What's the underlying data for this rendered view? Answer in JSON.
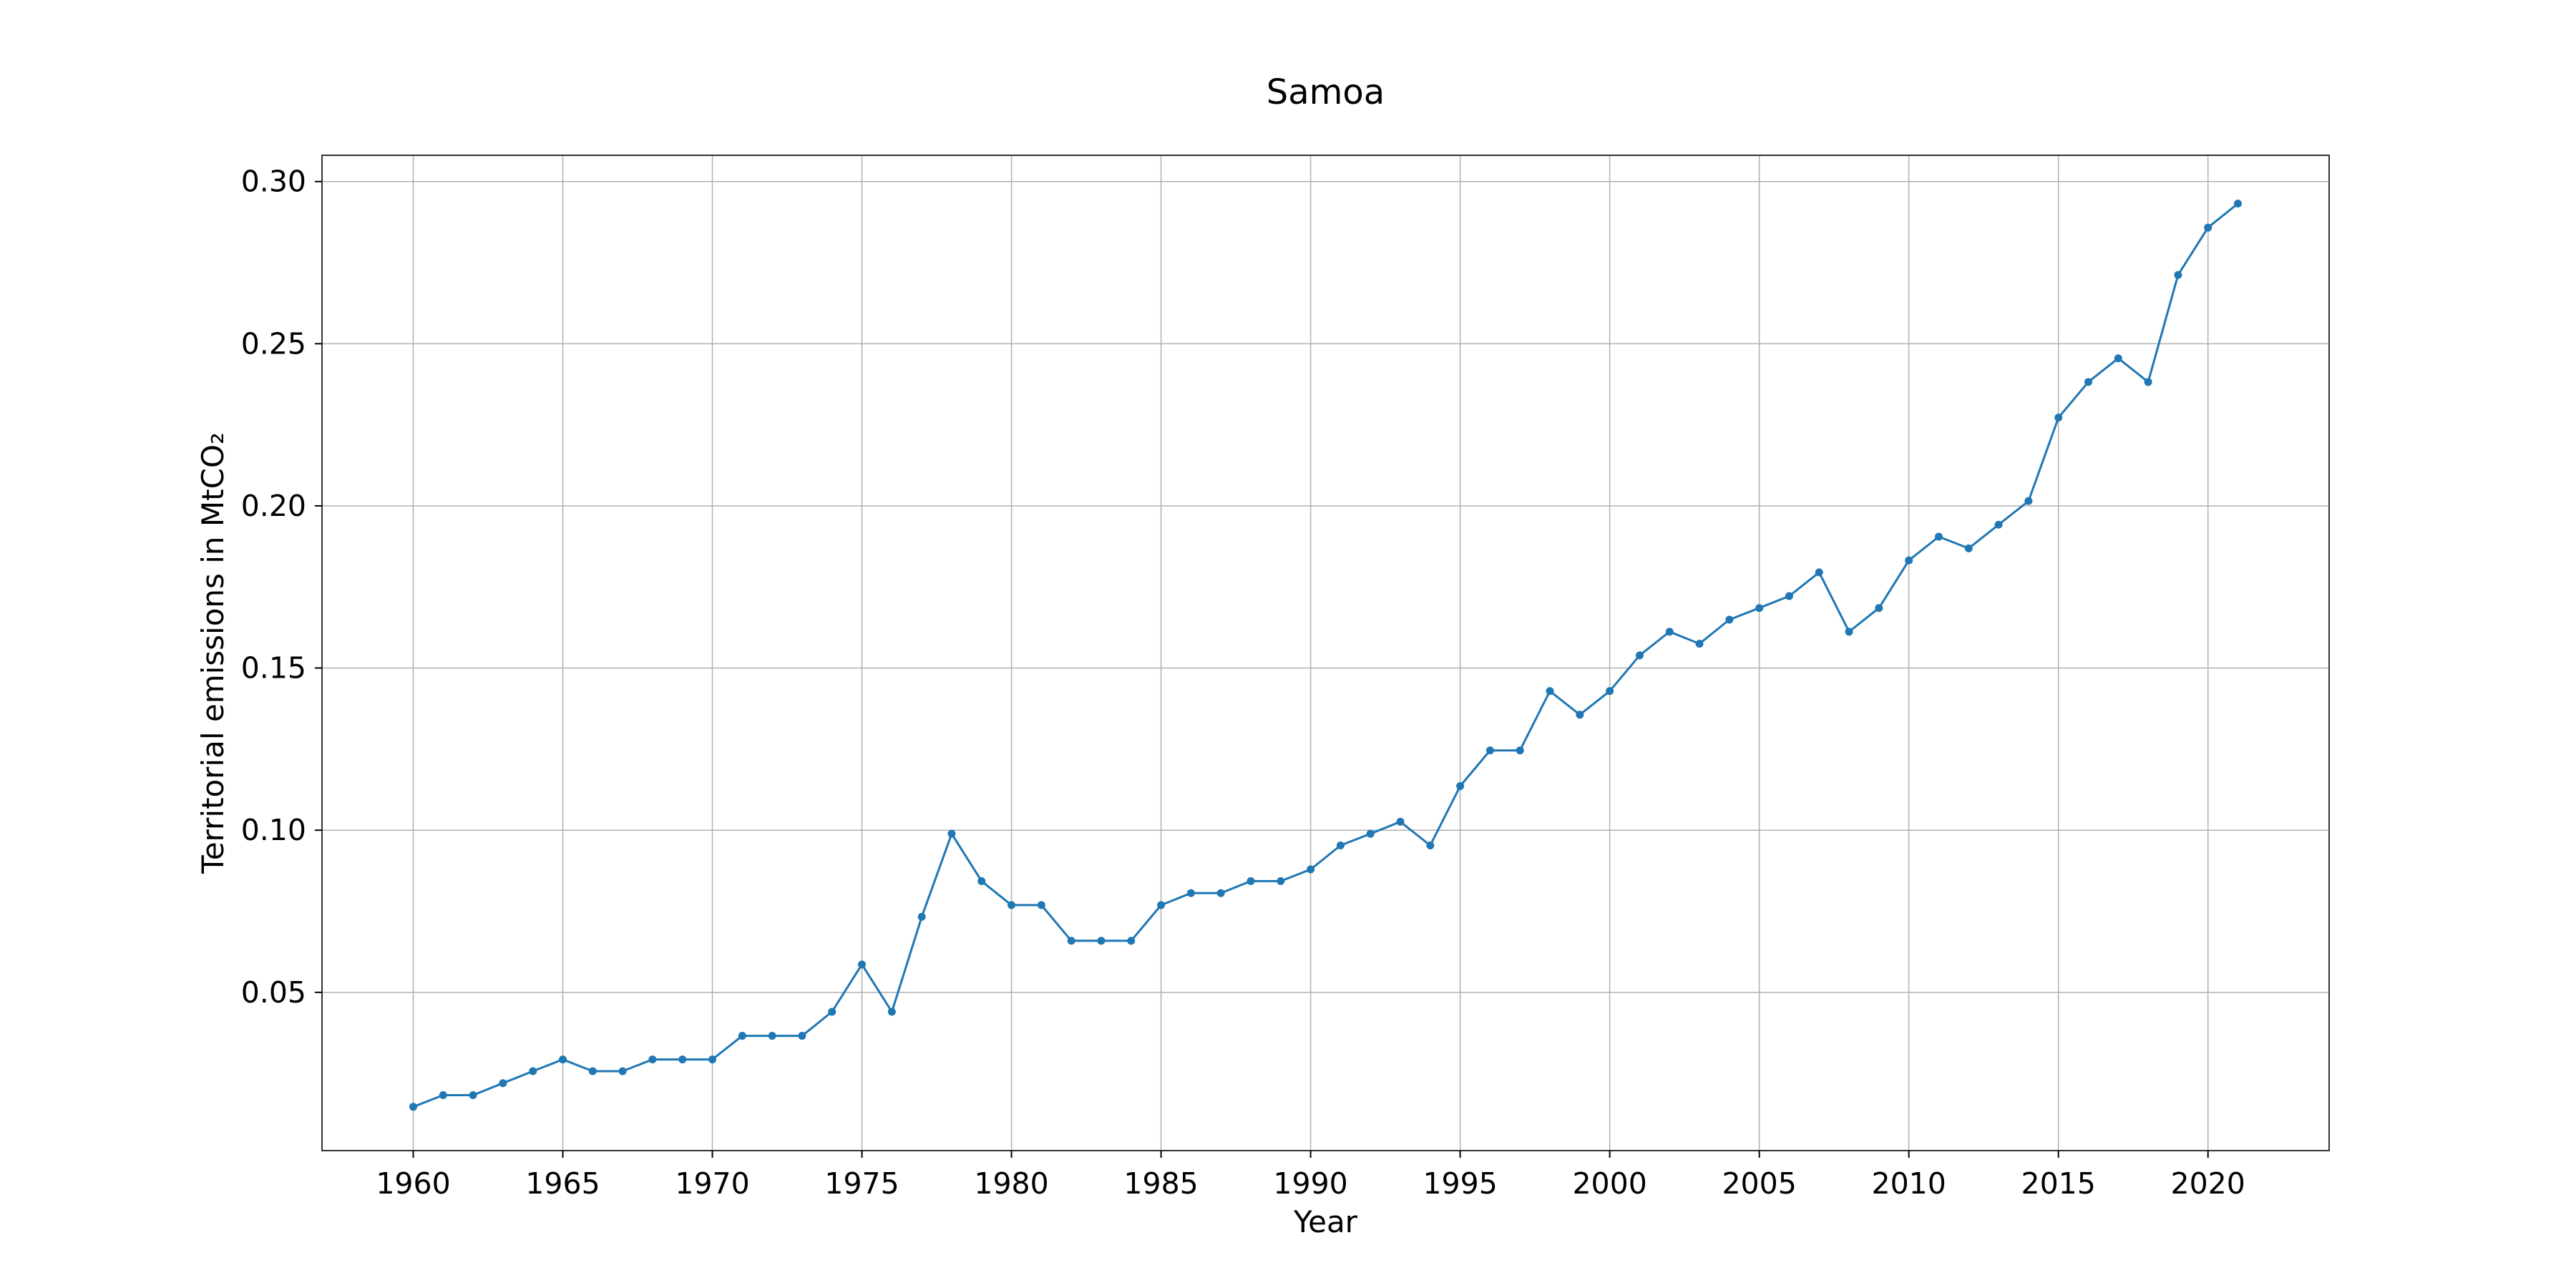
{
  "chart_data": {
    "type": "line",
    "title": "Samoa",
    "xlabel": "Year",
    "ylabel": "Territorial emissions in MtCO₂",
    "xlim": [
      1956.95,
      2024.05
    ],
    "ylim": [
      0.0012,
      0.3081
    ],
    "grid": true,
    "x_ticks": [
      1960,
      1965,
      1970,
      1975,
      1980,
      1985,
      1990,
      1995,
      2000,
      2005,
      2010,
      2015,
      2020
    ],
    "x_tick_labels": [
      "1960",
      "1965",
      "1970",
      "1975",
      "1980",
      "1985",
      "1990",
      "1995",
      "2000",
      "2005",
      "2010",
      "2015",
      "2020"
    ],
    "y_ticks": [
      0.05,
      0.1,
      0.15,
      0.2,
      0.25,
      0.3
    ],
    "y_tick_labels": [
      "0.05",
      "0.10",
      "0.15",
      "0.20",
      "0.25",
      "0.30"
    ],
    "series": [
      {
        "color": "#1f77b4",
        "marker": "circle",
        "x": [
          1960,
          1961,
          1962,
          1963,
          1964,
          1965,
          1966,
          1967,
          1968,
          1969,
          1970,
          1971,
          1972,
          1973,
          1974,
          1975,
          1976,
          1977,
          1978,
          1979,
          1980,
          1981,
          1982,
          1983,
          1984,
          1985,
          1986,
          1987,
          1988,
          1989,
          1990,
          1991,
          1992,
          1993,
          1994,
          1995,
          1996,
          1997,
          1998,
          1999,
          2000,
          2001,
          2002,
          2003,
          2004,
          2005,
          2006,
          2007,
          2008,
          2009,
          2010,
          2011,
          2012,
          2013,
          2014,
          2015,
          2016,
          2017,
          2018,
          2019,
          2020,
          2021
        ],
        "y": [
          0.0147,
          0.0183,
          0.0183,
          0.022,
          0.0257,
          0.0293,
          0.0257,
          0.0257,
          0.0293,
          0.0293,
          0.0293,
          0.0366,
          0.0366,
          0.0366,
          0.044,
          0.0586,
          0.044,
          0.0733,
          0.0989,
          0.0843,
          0.0769,
          0.0769,
          0.0659,
          0.0659,
          0.0659,
          0.0769,
          0.0806,
          0.0806,
          0.0843,
          0.0843,
          0.0879,
          0.0953,
          0.0989,
          0.1026,
          0.0953,
          0.1136,
          0.1246,
          0.1246,
          0.1429,
          0.1356,
          0.1429,
          0.1539,
          0.1612,
          0.1575,
          0.1649,
          0.1685,
          0.1722,
          0.1795,
          0.1612,
          0.1685,
          0.1832,
          0.1905,
          0.1869,
          0.1942,
          0.2015,
          0.2272,
          0.2382,
          0.2455,
          0.2382,
          0.2712,
          0.2858,
          0.2932
        ]
      }
    ]
  }
}
